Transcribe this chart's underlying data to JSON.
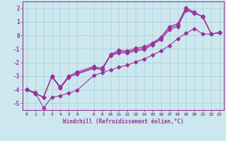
{
  "xlabel": "Windchill (Refroidissement éolien,°C)",
  "bg_color": "#cce8ee",
  "line_color": "#993399",
  "grid_color": "#aaccdd",
  "axis_color": "#993399",
  "xlim_min": -0.5,
  "xlim_max": 23.5,
  "ylim_min": -5.5,
  "ylim_max": 2.5,
  "xticks": [
    0,
    1,
    2,
    3,
    4,
    5,
    6,
    8,
    9,
    10,
    11,
    12,
    13,
    14,
    15,
    16,
    17,
    18,
    19,
    20,
    21,
    22,
    23
  ],
  "yticks": [
    2,
    1,
    0,
    -1,
    -2,
    -3,
    -4,
    -5
  ],
  "line1_x": [
    0,
    1,
    2,
    3,
    4,
    5,
    6,
    8,
    9,
    10,
    11,
    12,
    13,
    14,
    15,
    16,
    17,
    18,
    19,
    20,
    21,
    22,
    23
  ],
  "line1_y": [
    -4.0,
    -4.3,
    -4.55,
    -3.0,
    -3.85,
    -3.05,
    -2.85,
    -2.45,
    -2.5,
    -1.5,
    -1.3,
    -1.3,
    -1.15,
    -1.05,
    -0.7,
    -0.3,
    0.4,
    0.65,
    1.85,
    1.6,
    1.4,
    0.1,
    0.2
  ],
  "line2_x": [
    0,
    1,
    2,
    3,
    4,
    5,
    6,
    8,
    9,
    10,
    11,
    12,
    13,
    14,
    15,
    16,
    17,
    18,
    19,
    20,
    21,
    22,
    23
  ],
  "line2_y": [
    -4.0,
    -4.3,
    -4.55,
    -3.05,
    -3.9,
    -3.1,
    -2.8,
    -2.35,
    -2.4,
    -1.45,
    -1.2,
    -1.25,
    -1.05,
    -0.95,
    -0.65,
    -0.2,
    0.55,
    0.75,
    1.95,
    1.65,
    1.4,
    0.1,
    0.2
  ],
  "line3_x": [
    0,
    2,
    3,
    4,
    5,
    6,
    8,
    9,
    10,
    11,
    12,
    13,
    14,
    15,
    16,
    17,
    18,
    19,
    20,
    21,
    22,
    23
  ],
  "line3_y": [
    -4.0,
    -4.55,
    -3.0,
    -3.8,
    -3.0,
    -2.7,
    -2.3,
    -2.55,
    -1.4,
    -1.1,
    -1.15,
    -0.95,
    -0.85,
    -0.55,
    -0.15,
    0.65,
    0.85,
    2.05,
    1.7,
    1.35,
    0.1,
    0.2
  ],
  "line4_x": [
    0,
    1,
    2,
    3,
    4,
    5,
    6,
    8,
    9,
    10,
    11,
    12,
    13,
    14,
    15,
    16,
    17,
    18,
    19,
    20,
    21,
    22,
    23
  ],
  "line4_y": [
    -4.0,
    -4.2,
    -5.35,
    -4.55,
    -4.45,
    -4.25,
    -4.05,
    -2.95,
    -2.75,
    -2.55,
    -2.35,
    -2.2,
    -1.95,
    -1.75,
    -1.45,
    -1.15,
    -0.75,
    -0.25,
    0.15,
    0.5,
    0.1,
    0.1,
    0.2
  ]
}
